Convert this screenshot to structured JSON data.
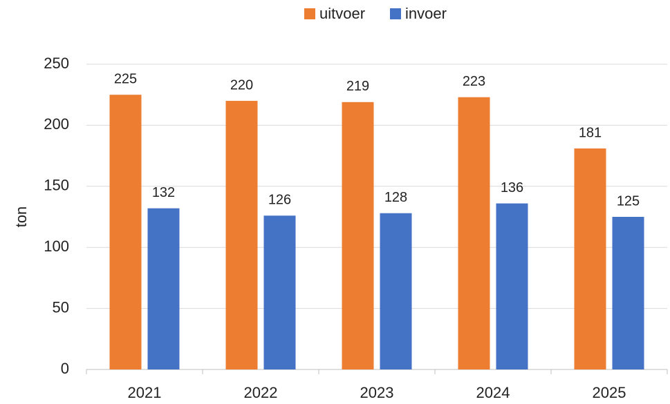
{
  "chart_data": {
    "type": "bar",
    "categories": [
      "2021",
      "2022",
      "2023",
      "2024",
      "2025"
    ],
    "series": [
      {
        "name": "uitvoer",
        "color": "#ed7d31",
        "values": [
          225,
          220,
          219,
          223,
          181
        ]
      },
      {
        "name": "invoer",
        "color": "#4472c4",
        "values": [
          132,
          126,
          128,
          136,
          125
        ]
      }
    ],
    "y_label": "ton",
    "ylim": [
      0,
      250
    ],
    "yticks": [
      0,
      50,
      100,
      150,
      200,
      250
    ],
    "grid": true,
    "legend": "top"
  }
}
